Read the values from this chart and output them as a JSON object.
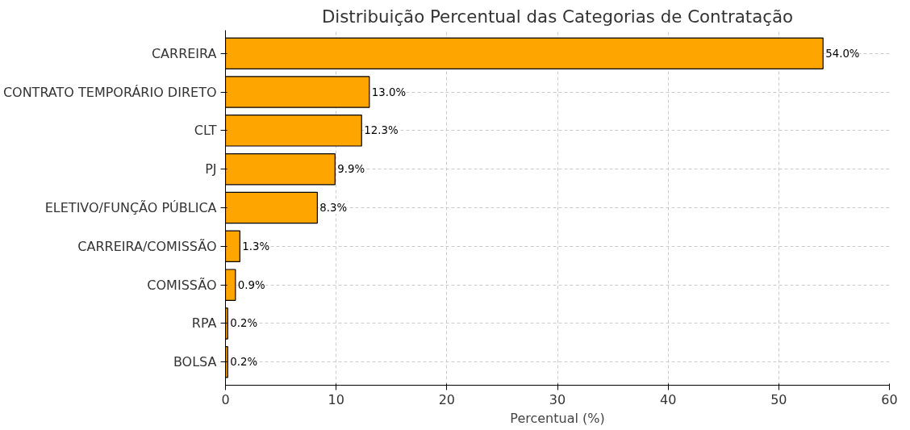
{
  "chart_data": {
    "type": "bar",
    "orientation": "horizontal",
    "title": "Distribuição Percentual das Categorias de Contratação",
    "xlabel": "Percentual (%)",
    "categories": [
      "CARREIRA",
      "CONTRATO TEMPORÁRIO DIRETO",
      "CLT",
      "PJ",
      "ELETIVO/FUNÇÃO PÚBLICA",
      "CARREIRA/COMISSÃO",
      "COMISSÃO",
      "RPA",
      "BOLSA"
    ],
    "values": [
      54.0,
      13.0,
      12.3,
      9.9,
      8.3,
      1.3,
      0.9,
      0.2,
      0.2
    ],
    "value_labels": [
      "54.0%",
      "13.0%",
      "12.3%",
      "9.9%",
      "8.3%",
      "1.3%",
      "0.9%",
      "0.2%",
      "0.2%"
    ],
    "color": "#ffa500",
    "xlim": [
      0,
      60
    ],
    "xticks": [
      0,
      10,
      20,
      30,
      40,
      50,
      60
    ],
    "grid": true
  }
}
